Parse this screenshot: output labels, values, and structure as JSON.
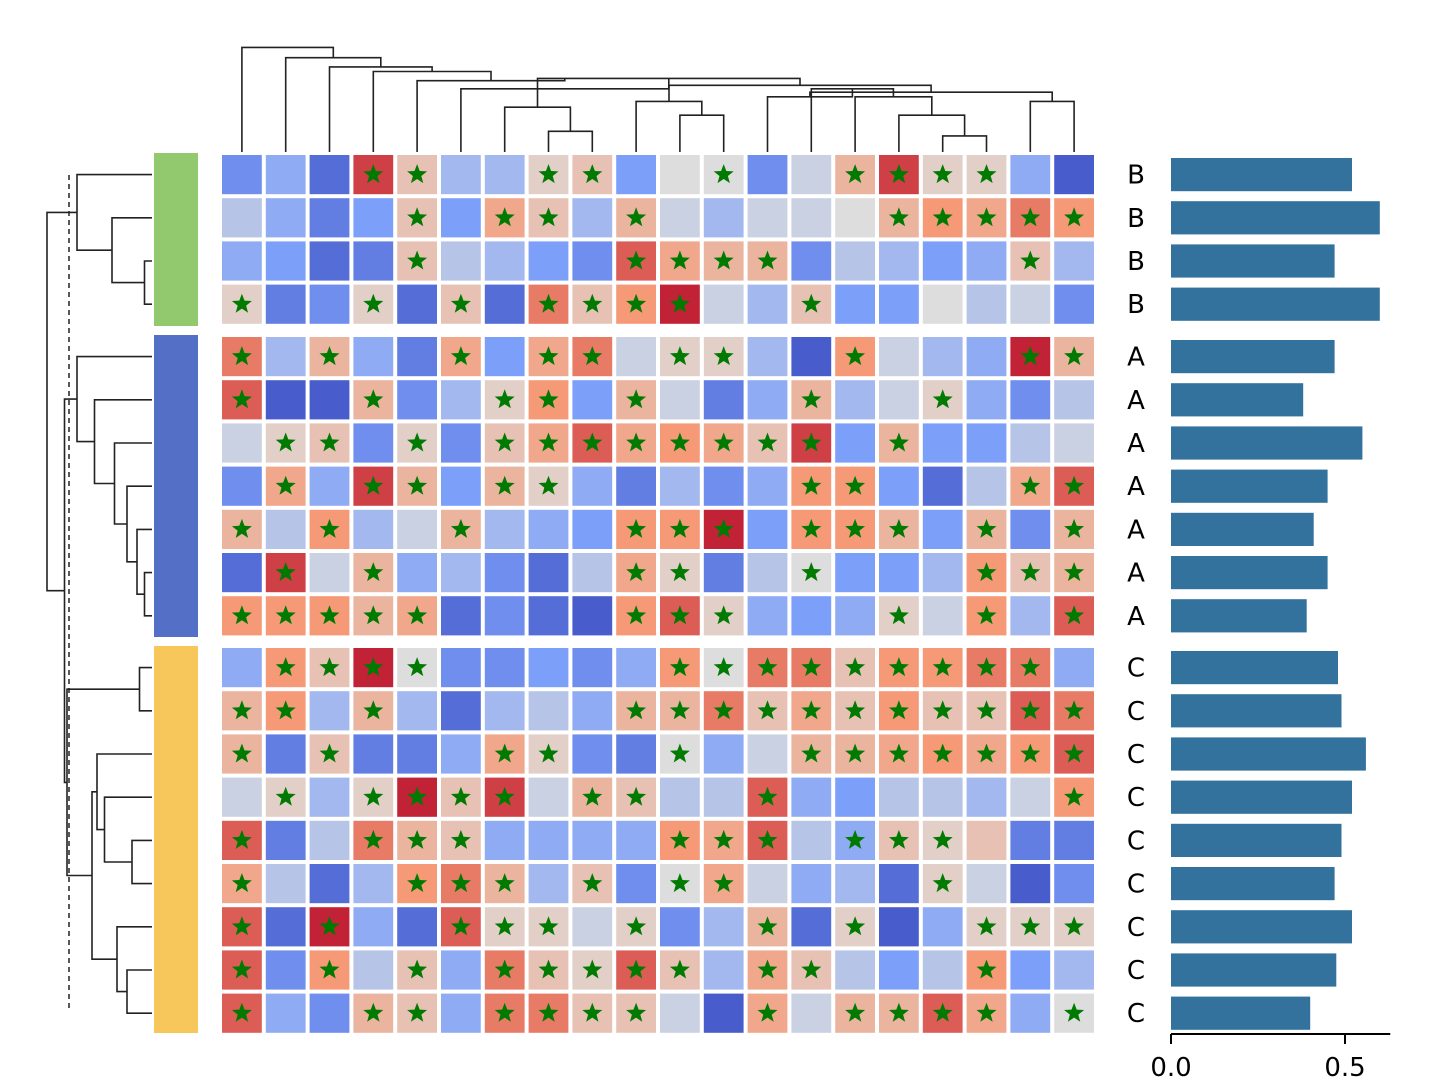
{
  "chart_data": {
    "type": "heatmap",
    "title": "",
    "colormap": "coolwarm",
    "marker_color": "#007a00",
    "row_groups": [
      {
        "label": "B",
        "color": "#92c96f",
        "rows": 4
      },
      {
        "label": "A",
        "color": "#5470c6",
        "rows": 7
      },
      {
        "label": "C",
        "color": "#f7c75b",
        "rows": 9
      }
    ],
    "row_labels": [
      "B",
      "B",
      "B",
      "B",
      "A",
      "A",
      "A",
      "A",
      "A",
      "A",
      "A",
      "C",
      "C",
      "C",
      "C",
      "C",
      "C",
      "C",
      "C",
      "C"
    ],
    "values": [
      [
        0.2,
        0.3,
        0.1,
        0.9,
        0.6,
        0.35,
        0.35,
        0.55,
        0.6,
        0.25,
        0.5,
        0.5,
        0.2,
        0.45,
        0.65,
        0.9,
        0.55,
        0.55,
        0.3,
        0.05
      ],
      [
        0.4,
        0.3,
        0.15,
        0.25,
        0.6,
        0.25,
        0.7,
        0.6,
        0.35,
        0.65,
        0.45,
        0.35,
        0.45,
        0.45,
        0.5,
        0.65,
        0.75,
        0.7,
        0.8,
        0.75
      ],
      [
        0.3,
        0.25,
        0.1,
        0.15,
        0.6,
        0.4,
        0.35,
        0.25,
        0.2,
        0.85,
        0.7,
        0.65,
        0.65,
        0.2,
        0.4,
        0.35,
        0.25,
        0.3,
        0.6,
        0.35
      ],
      [
        0.55,
        0.15,
        0.2,
        0.55,
        0.1,
        0.6,
        0.1,
        0.8,
        0.6,
        0.75,
        0.95,
        0.45,
        0.35,
        0.6,
        0.25,
        0.25,
        0.5,
        0.4,
        0.45,
        0.2
      ],
      [
        0.8,
        0.35,
        0.65,
        0.3,
        0.15,
        0.7,
        0.25,
        0.7,
        0.8,
        0.45,
        0.55,
        0.55,
        0.35,
        0.05,
        0.75,
        0.45,
        0.35,
        0.3,
        0.95,
        0.65
      ],
      [
        0.85,
        0.05,
        0.05,
        0.65,
        0.2,
        0.35,
        0.55,
        0.75,
        0.25,
        0.65,
        0.45,
        0.15,
        0.3,
        0.65,
        0.35,
        0.45,
        0.55,
        0.3,
        0.2,
        0.4
      ],
      [
        0.45,
        0.55,
        0.6,
        0.2,
        0.55,
        0.2,
        0.6,
        0.7,
        0.85,
        0.7,
        0.75,
        0.7,
        0.6,
        0.9,
        0.25,
        0.65,
        0.25,
        0.25,
        0.4,
        0.45
      ],
      [
        0.2,
        0.7,
        0.3,
        0.9,
        0.65,
        0.25,
        0.65,
        0.55,
        0.3,
        0.15,
        0.35,
        0.2,
        0.3,
        0.75,
        0.75,
        0.25,
        0.1,
        0.4,
        0.7,
        0.85
      ],
      [
        0.65,
        0.4,
        0.75,
        0.35,
        0.45,
        0.65,
        0.35,
        0.3,
        0.25,
        0.75,
        0.75,
        0.95,
        0.25,
        0.75,
        0.75,
        0.65,
        0.25,
        0.65,
        0.2,
        0.65
      ],
      [
        0.1,
        0.9,
        0.45,
        0.65,
        0.3,
        0.35,
        0.2,
        0.1,
        0.4,
        0.7,
        0.55,
        0.15,
        0.4,
        0.5,
        0.25,
        0.25,
        0.35,
        0.75,
        0.6,
        0.65
      ],
      [
        0.75,
        0.75,
        0.75,
        0.65,
        0.7,
        0.1,
        0.2,
        0.1,
        0.05,
        0.75,
        0.85,
        0.55,
        0.3,
        0.25,
        0.3,
        0.55,
        0.45,
        0.75,
        0.35,
        0.85
      ],
      [
        0.3,
        0.75,
        0.6,
        0.95,
        0.5,
        0.2,
        0.2,
        0.25,
        0.2,
        0.3,
        0.75,
        0.5,
        0.8,
        0.8,
        0.6,
        0.75,
        0.75,
        0.8,
        0.8,
        0.3
      ],
      [
        0.65,
        0.75,
        0.35,
        0.65,
        0.35,
        0.1,
        0.35,
        0.4,
        0.3,
        0.65,
        0.65,
        0.8,
        0.6,
        0.7,
        0.6,
        0.75,
        0.6,
        0.6,
        0.85,
        0.8
      ],
      [
        0.65,
        0.15,
        0.6,
        0.15,
        0.15,
        0.3,
        0.7,
        0.55,
        0.2,
        0.15,
        0.5,
        0.3,
        0.45,
        0.65,
        0.65,
        0.7,
        0.75,
        0.7,
        0.75,
        0.85
      ],
      [
        0.45,
        0.55,
        0.35,
        0.55,
        0.95,
        0.6,
        0.9,
        0.45,
        0.65,
        0.6,
        0.4,
        0.4,
        0.85,
        0.3,
        0.25,
        0.4,
        0.4,
        0.35,
        0.45,
        0.75
      ],
      [
        0.85,
        0.15,
        0.4,
        0.8,
        0.65,
        0.6,
        0.3,
        0.3,
        0.3,
        0.3,
        0.75,
        0.7,
        0.85,
        0.4,
        0.3,
        0.6,
        0.55,
        0.6,
        0.15,
        0.15
      ],
      [
        0.7,
        0.4,
        0.1,
        0.35,
        0.75,
        0.8,
        0.65,
        0.35,
        0.6,
        0.2,
        0.5,
        0.7,
        0.45,
        0.3,
        0.35,
        0.1,
        0.55,
        0.45,
        0.05,
        0.2
      ],
      [
        0.85,
        0.1,
        0.95,
        0.3,
        0.1,
        0.85,
        0.55,
        0.55,
        0.45,
        0.55,
        0.2,
        0.35,
        0.65,
        0.1,
        0.55,
        0.05,
        0.3,
        0.55,
        0.55,
        0.55
      ],
      [
        0.85,
        0.2,
        0.75,
        0.4,
        0.6,
        0.3,
        0.8,
        0.6,
        0.55,
        0.85,
        0.6,
        0.35,
        0.7,
        0.6,
        0.4,
        0.25,
        0.4,
        0.75,
        0.25,
        0.35
      ],
      [
        0.85,
        0.3,
        0.2,
        0.65,
        0.6,
        0.3,
        0.8,
        0.8,
        0.6,
        0.6,
        0.45,
        0.05,
        0.7,
        0.45,
        0.65,
        0.65,
        0.85,
        0.7,
        0.3,
        0.5
      ]
    ],
    "stars": [
      [
        0,
        0,
        0,
        1,
        1,
        0,
        0,
        1,
        1,
        0,
        0,
        1,
        0,
        0,
        1,
        1,
        1,
        1,
        0,
        0
      ],
      [
        0,
        0,
        0,
        0,
        1,
        0,
        1,
        1,
        0,
        1,
        0,
        0,
        0,
        0,
        0,
        1,
        1,
        1,
        1,
        1
      ],
      [
        0,
        0,
        0,
        0,
        1,
        0,
        0,
        0,
        0,
        1,
        1,
        1,
        1,
        0,
        0,
        0,
        0,
        0,
        1,
        0
      ],
      [
        1,
        0,
        0,
        1,
        0,
        1,
        0,
        1,
        1,
        1,
        1,
        0,
        0,
        1,
        0,
        0,
        0,
        0,
        0,
        0
      ],
      [
        1,
        0,
        1,
        0,
        0,
        1,
        0,
        1,
        1,
        0,
        1,
        1,
        0,
        0,
        1,
        0,
        0,
        0,
        1,
        1
      ],
      [
        1,
        0,
        0,
        1,
        0,
        0,
        1,
        1,
        0,
        1,
        0,
        0,
        0,
        1,
        0,
        0,
        1,
        0,
        0,
        0
      ],
      [
        0,
        1,
        1,
        0,
        1,
        0,
        1,
        1,
        1,
        1,
        1,
        1,
        1,
        1,
        0,
        1,
        0,
        0,
        0,
        0
      ],
      [
        0,
        1,
        0,
        1,
        1,
        0,
        1,
        1,
        0,
        0,
        0,
        0,
        0,
        1,
        1,
        0,
        0,
        0,
        1,
        1
      ],
      [
        1,
        0,
        1,
        0,
        0,
        1,
        0,
        0,
        0,
        1,
        1,
        1,
        0,
        1,
        1,
        1,
        0,
        1,
        0,
        1
      ],
      [
        0,
        1,
        0,
        1,
        0,
        0,
        0,
        0,
        0,
        1,
        1,
        0,
        0,
        1,
        0,
        0,
        0,
        1,
        1,
        1
      ],
      [
        1,
        1,
        1,
        1,
        1,
        0,
        0,
        0,
        0,
        1,
        1,
        1,
        0,
        0,
        0,
        1,
        0,
        1,
        0,
        1
      ],
      [
        0,
        1,
        1,
        1,
        1,
        0,
        0,
        0,
        0,
        0,
        1,
        1,
        1,
        1,
        1,
        1,
        1,
        1,
        1,
        0
      ],
      [
        1,
        1,
        0,
        1,
        0,
        0,
        0,
        0,
        0,
        1,
        1,
        1,
        1,
        1,
        1,
        1,
        1,
        1,
        1,
        1
      ],
      [
        1,
        0,
        1,
        0,
        0,
        0,
        1,
        1,
        0,
        0,
        1,
        0,
        0,
        1,
        1,
        1,
        1,
        1,
        1,
        1
      ],
      [
        0,
        1,
        0,
        1,
        1,
        1,
        1,
        0,
        1,
        1,
        0,
        0,
        1,
        0,
        0,
        0,
        0,
        0,
        0,
        1
      ],
      [
        1,
        0,
        0,
        1,
        1,
        1,
        0,
        0,
        0,
        0,
        1,
        1,
        1,
        0,
        1,
        1,
        1,
        0,
        0,
        0
      ],
      [
        1,
        0,
        0,
        0,
        1,
        1,
        1,
        0,
        1,
        0,
        1,
        1,
        0,
        0,
        0,
        0,
        1,
        0,
        0,
        0
      ],
      [
        1,
        0,
        1,
        0,
        0,
        1,
        1,
        1,
        0,
        1,
        0,
        0,
        1,
        0,
        1,
        0,
        0,
        1,
        1,
        1
      ],
      [
        1,
        0,
        1,
        0,
        1,
        0,
        1,
        1,
        1,
        1,
        1,
        0,
        1,
        1,
        0,
        0,
        0,
        1,
        0,
        0
      ],
      [
        1,
        0,
        0,
        1,
        1,
        0,
        1,
        1,
        1,
        1,
        0,
        0,
        1,
        0,
        1,
        1,
        1,
        1,
        0,
        1
      ]
    ],
    "bar_values": [
      0.52,
      0.6,
      0.47,
      0.6,
      0.47,
      0.38,
      0.55,
      0.45,
      0.41,
      0.45,
      0.39,
      0.48,
      0.49,
      0.56,
      0.52,
      0.49,
      0.47,
      0.52,
      0.475,
      0.4
    ],
    "bar_color": "#32729d",
    "bar_xlim": [
      0,
      0.63
    ],
    "bar_ticks": [
      "0.0",
      "0.5"
    ],
    "col_dendrogram": [
      [
        0,
        4.1,
        4,
        0,
        0,
        0
      ],
      [
        2,
        3,
        7,
        1.85,
        3,
        1.85
      ],
      [
        1,
        1,
        3,
        1.3,
        3,
        1.3
      ],
      [
        9,
        3.55,
        18,
        3.55,
        18,
        3.55
      ],
      [
        3,
        4.1,
        13,
        4.1,
        13,
        4.1
      ],
      [
        6,
        6.5,
        9,
        6.5,
        9,
        6.5
      ],
      [
        10,
        10.5,
        11,
        10.5,
        11,
        10.5
      ],
      [
        16,
        17.5,
        18,
        17.5,
        18,
        17.5
      ],
      [
        12,
        14.375,
        17,
        14.375,
        17,
        14.375
      ],
      [
        18,
        19,
        19,
        18.5,
        19,
        18.5
      ]
    ],
    "row_dendrogram": "hierarchical clustering of rows (drawn by script)"
  }
}
